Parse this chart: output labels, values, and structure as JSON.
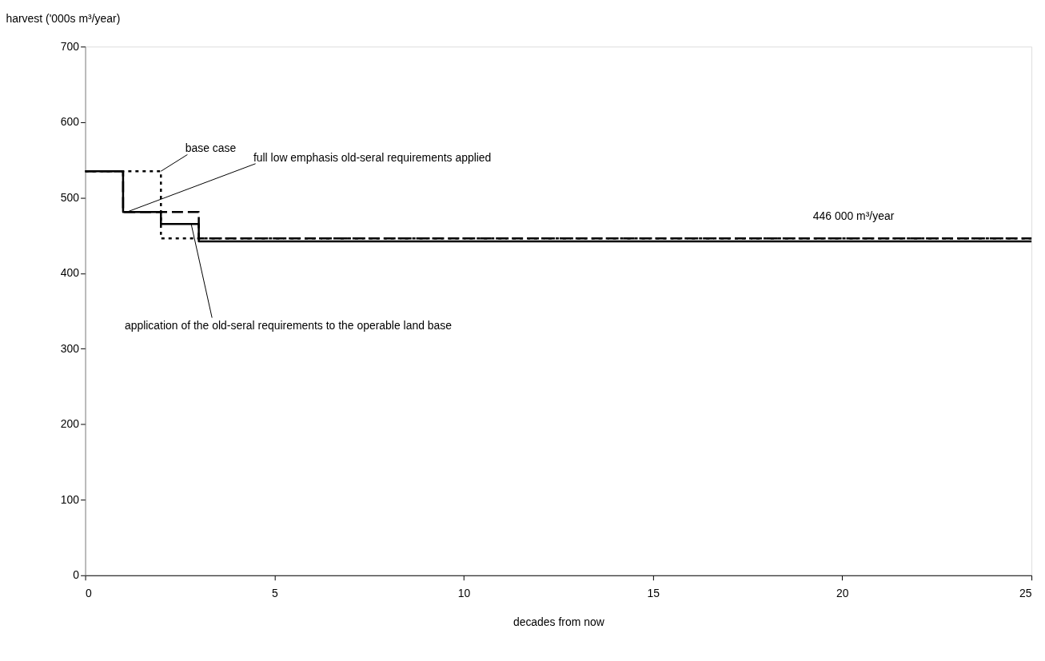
{
  "chart_data": {
    "type": "step",
    "xlabel": "decades from now",
    "ylabel": "harvest ('000s m³/year)",
    "xlim": [
      0,
      25
    ],
    "xticks": [
      0,
      5,
      10,
      15,
      20,
      25
    ],
    "ylim": [
      0,
      700
    ],
    "yticks": [
      0,
      100,
      200,
      300,
      400,
      500,
      600,
      700
    ],
    "grid": false,
    "series": [
      {
        "color": "#000000",
        "line_style": "dotted",
        "x": [
          0,
          2,
          25
        ],
        "values": [
          535,
          446,
          446
        ]
      },
      {
        "color": "#000000",
        "line_style": "dashed",
        "x": [
          0,
          1,
          3,
          25
        ],
        "values": [
          535,
          481,
          446,
          446
        ]
      },
      {
        "color": "#000000",
        "line_style": "solid",
        "x": [
          0,
          1,
          2,
          3,
          25
        ],
        "values": [
          535,
          481,
          465,
          442,
          442
        ]
      }
    ],
    "annotations": [
      {
        "text": "base case",
        "x": 2,
        "y": 535
      },
      {
        "text": "full low emphasis old-seral requirements applied",
        "x": 1.1,
        "y": 481
      },
      {
        "text": "application of the old-seral requirements to the operable land base",
        "x": 2.8,
        "y": 465
      },
      {
        "text": "446 000 m³/year",
        "x": 20.3,
        "y": 446
      }
    ]
  }
}
